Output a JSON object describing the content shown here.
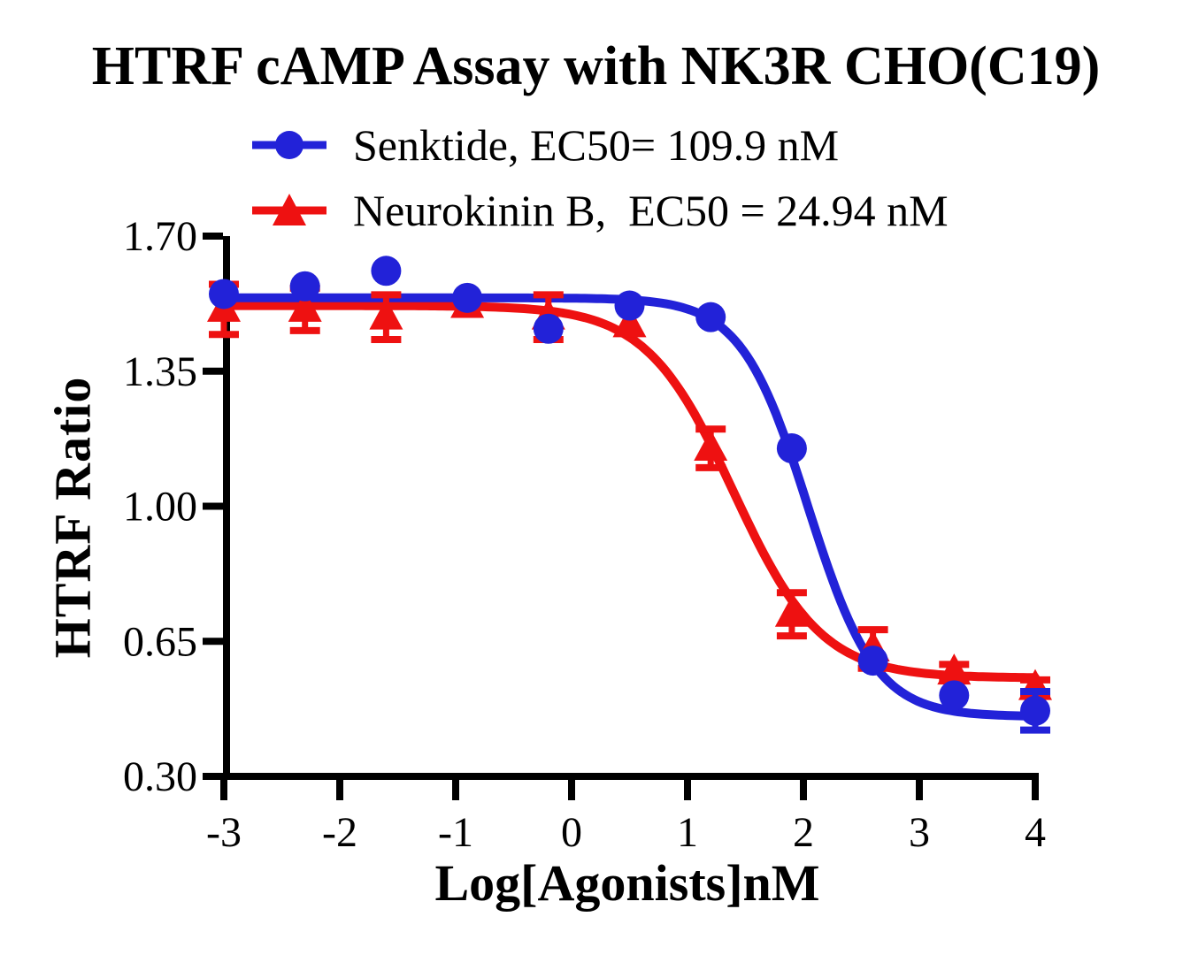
{
  "chart_data": {
    "type": "line",
    "title": "HTRF cAMP Assay with NK3R CHO(C19)",
    "xlabel": "Log[Agonists]nM",
    "ylabel": "HTRF Ratio",
    "xlim": [
      -3,
      4
    ],
    "ylim": [
      0.3,
      1.7
    ],
    "x_ticks": [
      "-3",
      "-2",
      "-1",
      "0",
      "1",
      "2",
      "3",
      "4"
    ],
    "y_ticks": [
      "1.70",
      "1.35",
      "1.00",
      "0.65",
      "0.30"
    ],
    "grid": false,
    "legend_position": "top",
    "axis_color": "#000000",
    "background_color": "#ffffff",
    "series": [
      {
        "name": "Senktide",
        "legend_label": "Senktide, EC50= 109.9 nM",
        "ec50_display": "109.9 nM",
        "color": "#2222D8",
        "marker": "circle",
        "x": [
          -3,
          -2.3,
          -1.6,
          -0.9,
          -0.2,
          0.5,
          1.2,
          1.9,
          2.6,
          3.3,
          4
        ],
        "y": [
          1.55,
          1.57,
          1.61,
          1.54,
          1.46,
          1.52,
          1.49,
          1.15,
          0.6,
          0.51,
          0.47
        ],
        "yerr": [
          0,
          0,
          0,
          0,
          0,
          0,
          0,
          0,
          0,
          0,
          0.05
        ],
        "fit": {
          "top": 1.54,
          "bottom": 0.455,
          "logEC50": 2.041,
          "hill": 1.5
        }
      },
      {
        "name": "Neurokinin B",
        "legend_label": "Neurokinin B,  EC50 = 24.94 nM",
        "ec50_display": "24.94 nM",
        "color": "#EE1111",
        "marker": "triangle",
        "x": [
          -3,
          -2.3,
          -1.6,
          -0.9,
          -0.2,
          0.5,
          1.2,
          1.9,
          2.6,
          3.3,
          4
        ],
        "y": [
          1.51,
          1.51,
          1.49,
          1.52,
          1.49,
          1.47,
          1.15,
          0.72,
          0.63,
          0.57,
          0.53
        ],
        "yerr": [
          0.065,
          0.055,
          0.058,
          0,
          0.058,
          0,
          0.05,
          0.056,
          0.05,
          0.02,
          0.02
        ],
        "fit": {
          "top": 1.52,
          "bottom": 0.555,
          "logEC50": 1.397,
          "hill": 1.15
        }
      }
    ]
  }
}
